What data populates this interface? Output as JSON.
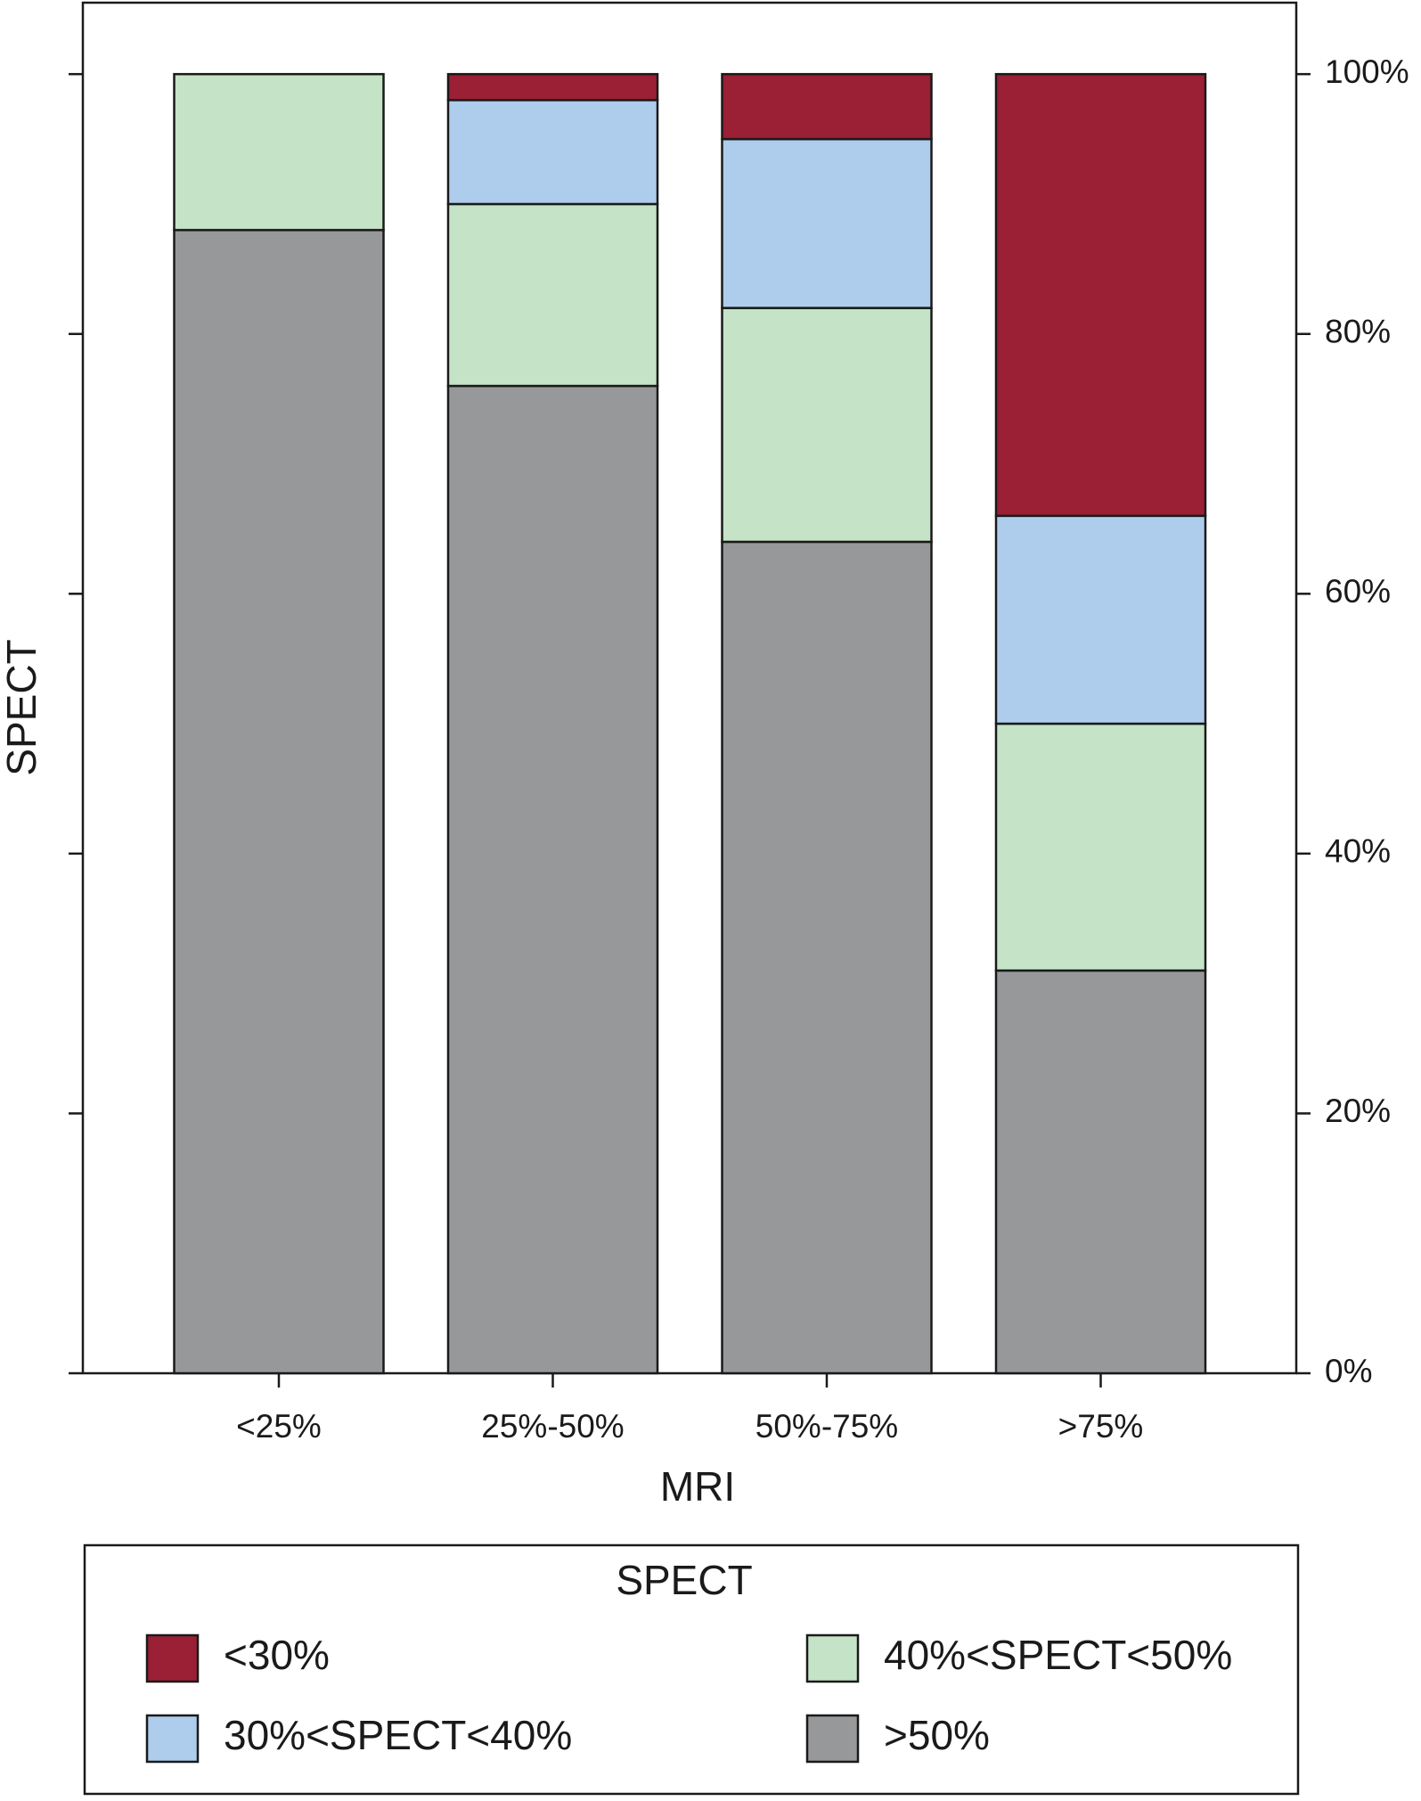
{
  "chart_data": {
    "type": "stacked-bar",
    "x_label": "MRI",
    "y_label": "SPECT",
    "categories": [
      "<25%",
      "25%-50%",
      "50%-75%",
      ">75%"
    ],
    "series": [
      {
        "name": ">50%",
        "color": "#97989a",
        "values": [
          88,
          76,
          64,
          31
        ]
      },
      {
        "name": "40%<SPECT<50%",
        "color": "#c5e3c6",
        "values": [
          12,
          14,
          18,
          19
        ]
      },
      {
        "name": "30%<SPECT<40%",
        "color": "#aecdec",
        "values": [
          0,
          8,
          13,
          16
        ]
      },
      {
        "name": "<30%",
        "color": "#9b1f35",
        "values": [
          0,
          2,
          5,
          34
        ]
      }
    ],
    "ylim": [
      0,
      105.5
    ],
    "yticks": [
      {
        "value": 0,
        "label": "0%"
      },
      {
        "value": 20,
        "label": "20%"
      },
      {
        "value": 40,
        "label": "40%"
      },
      {
        "value": 60,
        "label": "60%"
      },
      {
        "value": 80,
        "label": "80%"
      },
      {
        "value": 100,
        "label": "100%"
      }
    ],
    "legend_title": "SPECT"
  }
}
